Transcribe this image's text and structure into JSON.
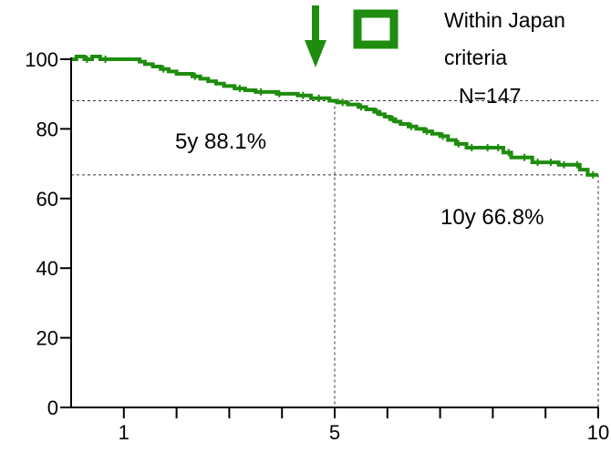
{
  "chart_data": {
    "type": "line",
    "series": [
      {
        "name": "Within Japan criteria",
        "color": "#1e8c0f",
        "x": [
          0,
          0.1,
          0.25,
          0.4,
          0.55,
          0.7,
          1.3,
          1.4,
          1.55,
          1.7,
          1.85,
          2.0,
          2.3,
          2.45,
          2.6,
          2.75,
          2.9,
          3.1,
          3.3,
          3.5,
          3.75,
          3.9,
          4.05,
          4.3,
          4.55,
          4.75,
          4.9,
          5.05,
          5.25,
          5.45,
          5.6,
          5.75,
          5.85,
          5.95,
          6.05,
          6.15,
          6.25,
          6.4,
          6.55,
          6.7,
          6.85,
          7.0,
          7.15,
          7.3,
          7.5,
          7.75,
          8.0,
          8.2,
          8.35,
          8.5,
          8.75,
          9.0,
          9.25,
          9.5,
          9.65,
          9.8,
          10.0
        ],
        "y": [
          100,
          100.8,
          100,
          100.8,
          100,
          100,
          99.3,
          98.6,
          97.9,
          97.2,
          96.5,
          95.8,
          95.1,
          94.4,
          93.7,
          93.0,
          92.3,
          91.6,
          91.1,
          90.6,
          90.6,
          90.1,
          90.1,
          89.6,
          88.8,
          88.8,
          88.1,
          87.6,
          87.0,
          86.3,
          85.6,
          84.9,
          84.2,
          83.5,
          82.8,
          82.1,
          81.4,
          80.7,
          80.0,
          79.3,
          78.6,
          77.9,
          76.8,
          75.7,
          74.6,
          74.6,
          74.6,
          73.2,
          71.8,
          71.8,
          70.4,
          70.4,
          69.7,
          69.7,
          68.3,
          66.8,
          66.8
        ],
        "censor_x": [
          0.3,
          0.65,
          1.75,
          2.35,
          3.2,
          3.6,
          3.95,
          4.4,
          4.7,
          5.15,
          5.5,
          5.8,
          6.1,
          6.45,
          6.75,
          7.05,
          7.35,
          7.6,
          7.9,
          8.1,
          8.3,
          8.6,
          8.85,
          9.1,
          9.35,
          9.6,
          9.9
        ]
      }
    ],
    "xlim": [
      0,
      10
    ],
    "ylim": [
      0,
      100
    ],
    "x_ticks": [
      {
        "value": 1,
        "label": "1"
      },
      {
        "value": 5,
        "label": "5"
      },
      {
        "value": 10,
        "label": "10"
      }
    ],
    "x_minor_ticks": [
      2,
      3,
      4,
      6,
      7,
      8,
      9
    ],
    "y_ticks": [
      0,
      20,
      40,
      60,
      80,
      100
    ],
    "reference_lines": [
      {
        "x": 5,
        "y": 88.1
      },
      {
        "x": 10,
        "y": 66.8
      }
    ],
    "annotations": [
      "5y 88.1%",
      "10y 66.8%"
    ],
    "legend_text": [
      "Within Japan",
      "criteria",
      "N=147"
    ],
    "legend_color": "#1e8c0f",
    "arrow_color": "#1e8c0f",
    "grid": false,
    "legend_position": "top-right"
  }
}
